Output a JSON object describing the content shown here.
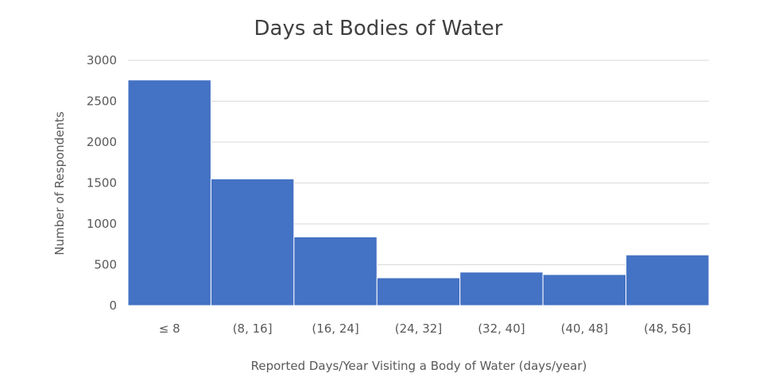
{
  "chart_data": {
    "type": "bar",
    "title": "Days at Bodies of Water",
    "xlabel": "Reported Days/Year Visiting a Body of Water (days/year)",
    "ylabel": "Number of Respondents",
    "categories": [
      "≤ 8",
      "(8, 16]",
      "(16, 24]",
      "(24, 32]",
      "(32, 40]",
      "(40, 48]",
      "(48, 56]"
    ],
    "values": [
      2760,
      1550,
      840,
      340,
      410,
      380,
      620
    ],
    "ylim": [
      0,
      3000
    ],
    "yticks": [
      0,
      500,
      1000,
      1500,
      2000,
      2500,
      3000
    ],
    "grid": true,
    "legend": "none",
    "colors": {
      "bar": "#4472c4",
      "bar_edge": "#ffffff",
      "grid": "#d9d9d9",
      "text": "#595959"
    }
  }
}
